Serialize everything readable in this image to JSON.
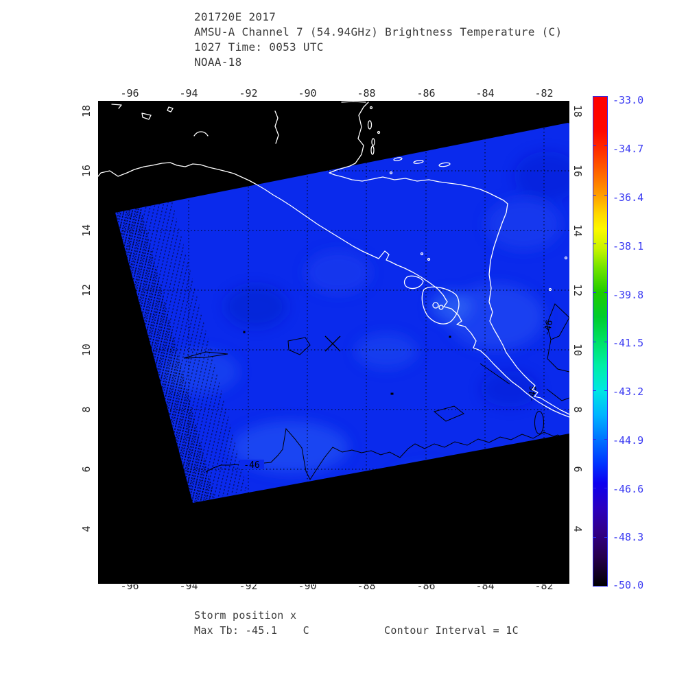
{
  "title": {
    "lines": [
      "201720E 2017",
      "AMSU-A Channel 7 (54.94GHz) Brightness Temperature (C)",
      "1027 Time: 0053 UTC",
      "NOAA-18"
    ]
  },
  "axes": {
    "lon_labels": [
      "-96",
      "-94",
      "-92",
      "-90",
      "-88",
      "-86",
      "-84",
      "-82"
    ],
    "lat_labels": [
      "18",
      "16",
      "14",
      "12",
      "10",
      "8",
      "6",
      "4"
    ]
  },
  "colorbar": {
    "labels": [
      "-33.0",
      "-34.7",
      "-36.4",
      "-38.1",
      "-39.8",
      "-41.5",
      "-43.2",
      "-44.9",
      "-46.6",
      "-48.3",
      "-50.0"
    ],
    "values": [
      -33.0,
      -34.7,
      -36.4,
      -38.1,
      -39.8,
      -41.5,
      -43.2,
      -44.9,
      -46.6,
      -48.3,
      -50.0
    ],
    "label_color": "#3a3af2"
  },
  "map_annotations": {
    "contour_label": "-46",
    "storm_marker_symbol": "x"
  },
  "footer": {
    "storm_position": "Storm position x",
    "max_tb": "Max Tb: -45.1    C",
    "contour_interval": "Contour Interval = 1C"
  },
  "colors": {
    "plot_background": "#000000",
    "swath_base": "#0a2aec",
    "coastline": "#ffffff",
    "contour": "#000000",
    "colorbar_frame": "#2a2af0"
  }
}
